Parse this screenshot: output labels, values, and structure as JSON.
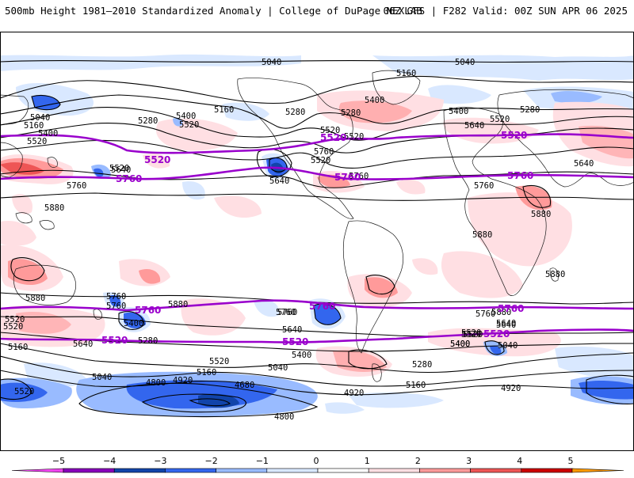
{
  "header": {
    "left_title": "500mb Height 1981–2010 Standardized Anomaly | College of DuPage NEXLAB",
    "right_title": "06Z GFS | F282 Valid: 00Z SUN APR 06 2025"
  },
  "colors": {
    "contour": "#000000",
    "highlight_contour": "#9900cc",
    "coast": "#1a1a1a",
    "anomaly_levels": [
      "#ee44ee",
      "#8800bb",
      "#1144aa",
      "#3366ee",
      "#99bbff",
      "#d9e8ff",
      "#ffffff",
      "#ffdfe3",
      "#ff9a9a",
      "#ee5555",
      "#cc0000",
      "#ff9900",
      "#ffcc22"
    ]
  },
  "contour_labels": [
    "5040",
    "5040",
    "5160",
    "5040",
    "5160",
    "5400",
    "5520",
    "5280",
    "5400",
    "5520",
    "5160",
    "5280",
    "5400",
    "5280",
    "5520",
    "5520",
    "5400",
    "5280",
    "5640",
    "5520",
    "5520",
    "5640",
    "5760",
    "5520",
    "5760",
    "5640",
    "5760",
    "5640",
    "5760",
    "5880",
    "5880",
    "5880",
    "5880",
    "5880",
    "5880",
    "5760",
    "5760",
    "5880",
    "5400",
    "5280",
    "5520",
    "5640",
    "5520",
    "5160",
    "5760",
    "5640",
    "5520",
    "5400",
    "5520",
    "5520",
    "5640",
    "5400",
    "5040",
    "5160",
    "5280",
    "5160",
    "5040",
    "4920",
    "4800",
    "4680",
    "4800",
    "4920",
    "5040",
    "4920",
    "5520",
    "5760",
    "5760",
    "5640",
    "5400",
    "5520"
  ],
  "highlight_labels": [
    "5520",
    "5520",
    "5520",
    "5520",
    "5760",
    "5760",
    "5760",
    "5760",
    "5760",
    "5760",
    "5520",
    "5520",
    "5520"
  ],
  "colorbar": {
    "ticks": [
      "−5",
      "−4",
      "−3",
      "−2",
      "−1",
      "0",
      "1",
      "2",
      "3",
      "4",
      "5"
    ]
  }
}
